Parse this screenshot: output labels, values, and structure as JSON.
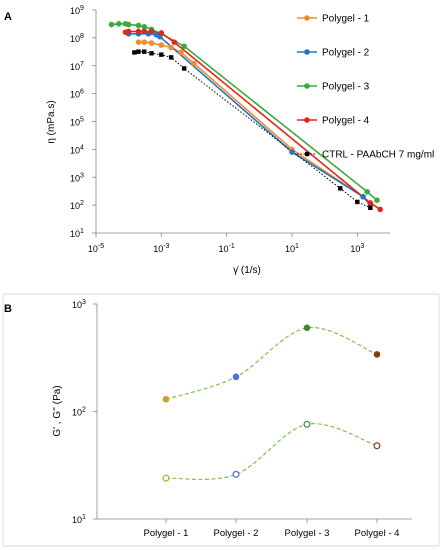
{
  "chart_data": [
    {
      "panel": "A",
      "type": "line",
      "xscale": "log",
      "yscale": "log",
      "xlabel": "γ̇ (1/s)",
      "ylabel": "η (mPa.s)",
      "xlim": [
        1e-05,
        10000
      ],
      "ylim": [
        10,
        1000000000.0
      ],
      "x_ticks": [
        {
          "v": 1e-05,
          "b": "10",
          "e": "-5"
        },
        {
          "v": 0.001,
          "b": "10",
          "e": "-3"
        },
        {
          "v": 0.1,
          "b": "10",
          "e": "-1"
        },
        {
          "v": 10,
          "b": "10",
          "e": "1"
        },
        {
          "v": 1000,
          "b": "10",
          "e": "3"
        }
      ],
      "y_ticks": [
        {
          "v": 10,
          "b": "10",
          "e": "1"
        },
        {
          "v": 100,
          "b": "10",
          "e": "2"
        },
        {
          "v": 1000,
          "b": "10",
          "e": "3"
        },
        {
          "v": 10000,
          "b": "10",
          "e": "4"
        },
        {
          "v": 100000,
          "b": "10",
          "e": "5"
        },
        {
          "v": 1000000,
          "b": "10",
          "e": "6"
        },
        {
          "v": 10000000,
          "b": "10",
          "e": "7"
        },
        {
          "v": 100000000,
          "b": "10",
          "e": "8"
        },
        {
          "v": 1000000000,
          "b": "10",
          "e": "9"
        }
      ],
      "grid": false,
      "legend_position": "right",
      "series": [
        {
          "name": "Polygel - 1",
          "color": "#f28c28",
          "marker": "circle",
          "line": "solid",
          "x": [
            0.0002,
            0.0003,
            0.0005,
            0.001,
            0.002,
            0.004,
            0.01,
            10,
            1500,
            2500
          ],
          "y": [
            70000000.0,
            70000000.0,
            65000000.0,
            55000000.0,
            45000000.0,
            30000000.0,
            12000000.0,
            10000,
            200,
            110
          ]
        },
        {
          "name": "Polygel - 2",
          "color": "#1f77c4",
          "marker": "circle",
          "line": "solid",
          "x": [
            0.0001,
            0.0002,
            0.0004,
            0.0007,
            0.0009,
            10,
            1500,
            2500
          ],
          "y": [
            140000000.0,
            140000000.0,
            140000000.0,
            130000000.0,
            110000000.0,
            8000,
            200,
            100
          ]
        },
        {
          "name": "Polygel - 3",
          "color": "#3caa3c",
          "marker": "circle",
          "line": "solid",
          "x": [
            3e-05,
            5e-05,
            8e-05,
            0.0001,
            0.0002,
            0.0003,
            0.0005,
            0.001,
            0.005,
            2000,
            4000
          ],
          "y": [
            300000000.0,
            320000000.0,
            320000000.0,
            300000000.0,
            280000000.0,
            250000000.0,
            200000000.0,
            140000000.0,
            50000000.0,
            300,
            150
          ]
        },
        {
          "name": "Polygel - 4",
          "color": "#e8221c",
          "marker": "circle",
          "line": "solid",
          "x": [
            8e-05,
            0.0001,
            0.0002,
            0.0003,
            0.0005,
            0.001,
            0.0025,
            2500,
            5000
          ],
          "y": [
            160000000.0,
            170000000.0,
            170000000.0,
            170000000.0,
            170000000.0,
            150000000.0,
            70000000.0,
            120,
            70
          ]
        },
        {
          "name": "CTRL - PAAbCH 7 mg/ml",
          "color": "#000000",
          "marker": "square",
          "line": "dotted",
          "x": [
            0.00015,
            0.0002,
            0.0003,
            0.0005,
            0.001,
            0.002,
            0.005,
            300,
            1000,
            2500
          ],
          "y": [
            30000000.0,
            32000000.0,
            32000000.0,
            28000000.0,
            25000000.0,
            20000000.0,
            8000000.0,
            400,
            130,
            80
          ]
        }
      ]
    },
    {
      "panel": "B",
      "type": "scatter",
      "yscale": "log",
      "ylabel": "G' , G'' (Pa)",
      "ylim": [
        10,
        1000
      ],
      "y_ticks": [
        {
          "v": 10,
          "b": "10",
          "e": "1"
        },
        {
          "v": 100,
          "b": "10",
          "e": "2"
        },
        {
          "v": 1000,
          "b": "10",
          "e": "3"
        }
      ],
      "categories": [
        "Polygel - 1",
        "Polygel - 2",
        "Polygel - 3",
        "Polygel - 4"
      ],
      "point_colors": [
        "#c7a52a",
        "#4f6fd1",
        "#3e8a2e",
        "#8a3a10"
      ],
      "connector_color": "#7cc44c",
      "series": [
        {
          "name": "",
          "fill": "filled",
          "values": [
            130,
            210,
            600,
            340
          ]
        },
        {
          "name": "",
          "fill": "open",
          "values": [
            24,
            26,
            76,
            48
          ]
        }
      ]
    }
  ]
}
